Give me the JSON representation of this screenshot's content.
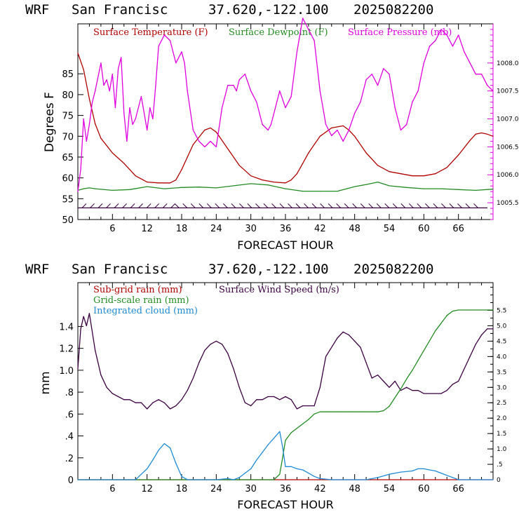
{
  "panel1": {
    "header": {
      "model": "WRF",
      "site": "San Francisc",
      "coords": "37.620,-122.100",
      "date": "2025082200"
    },
    "ylabel": "Degrees F",
    "xlabel": "FORECAST HOUR",
    "y_ticks": [
      "50",
      "55",
      "60",
      "65",
      "70",
      "75",
      "80",
      "85"
    ],
    "x_ticks": [
      "6",
      "12",
      "18",
      "24",
      "30",
      "36",
      "42",
      "48",
      "54",
      "60",
      "66"
    ],
    "right_ticks": [
      "1005.5",
      "1006.0",
      "1006.5",
      "1007.0",
      "1007.5",
      "1008.0"
    ],
    "legend": [
      {
        "label": "Surface Temperature (F)",
        "color": "#b00000"
      },
      {
        "label": "Surface Dewpoint (F)",
        "color": "#228b22"
      },
      {
        "label": "Surface Pressure (mb)",
        "color": "#e000e0"
      }
    ],
    "colors": {
      "temperature": "#b00000",
      "dewpoint": "#228b22",
      "pressure": "#e000e0",
      "wind_barbs": "#3a0040",
      "right_axis": "#e000e0"
    }
  },
  "panel2": {
    "header": {
      "model": "WRF",
      "site": "San Francisc",
      "coords": "37.620,-122.100",
      "date": "2025082200"
    },
    "ylabel": "mm",
    "xlabel": "FORECAST HOUR",
    "y_ticks": [
      "0",
      ".2",
      ".4",
      ".6",
      ".8",
      "1.0",
      "1.2",
      "1.4"
    ],
    "x_ticks": [
      "6",
      "12",
      "18",
      "24",
      "30",
      "36",
      "42",
      "48",
      "54",
      "60",
      "66"
    ],
    "right_ticks": [
      "0",
      ".5",
      "1.0",
      "1.5",
      "2.0",
      "2.5",
      "3.0",
      "3.5",
      "4.0",
      "4.5",
      "5.0",
      "5.5"
    ],
    "legend": [
      {
        "label": "Sub-grid rain (mm)",
        "color": "#b00000"
      },
      {
        "label": "Surface Wind Speed (m/s)",
        "color": "#3a0040"
      },
      {
        "label": "Grid-scale rain (mm)",
        "color": "#228b22"
      },
      {
        "label": "Integrated cloud (mm)",
        "color": "#1e8ad6"
      }
    ],
    "colors": {
      "subgrid": "#b00000",
      "wind": "#3a0040",
      "gridrain": "#228b22",
      "cloud": "#1e8ad6",
      "right_axis": "#000000"
    }
  },
  "chart_data": [
    {
      "type": "line",
      "title": "WRF San Francisc 37.620,-122.100 2025082200",
      "xlabel": "FORECAST HOUR",
      "ylabel": "Degrees F",
      "xlim": [
        0,
        72
      ],
      "ylim": [
        50,
        97
      ],
      "y2lim": [
        1005.2,
        1008.7
      ],
      "grid": false,
      "legend_position": "top",
      "series": [
        {
          "name": "Surface Temperature (F)",
          "axis": "left",
          "x": [
            0,
            1,
            2,
            3,
            4,
            6,
            8,
            10,
            12,
            14,
            16,
            17,
            18,
            19,
            20,
            22,
            23,
            24,
            26,
            28,
            30,
            32,
            34,
            36,
            37,
            38,
            39,
            40,
            42,
            44,
            46,
            47,
            48,
            50,
            52,
            54,
            56,
            58,
            60,
            62,
            64,
            66,
            68,
            69,
            70,
            71,
            72
          ],
          "y": [
            90,
            86,
            79,
            73,
            69.5,
            66,
            63.5,
            60.5,
            59,
            58.8,
            58.8,
            59.5,
            62,
            65,
            68,
            71.5,
            72,
            71,
            67,
            63,
            60.5,
            59.5,
            59,
            58.8,
            59.5,
            61,
            63.5,
            66,
            70,
            72,
            72.5,
            71.5,
            70,
            66,
            63,
            61.5,
            61,
            60.5,
            60.5,
            61,
            62.5,
            65.5,
            69,
            70.5,
            70.8,
            70.5,
            70
          ]
        },
        {
          "name": "Surface Dewpoint (F)",
          "axis": "left",
          "x": [
            0,
            1,
            2,
            3,
            6,
            9,
            12,
            15,
            18,
            21,
            24,
            27,
            30,
            33,
            36,
            39,
            42,
            45,
            48,
            50,
            52,
            54,
            57,
            60,
            63,
            66,
            69,
            72
          ],
          "y": [
            57,
            57.4,
            57.6,
            57.4,
            57,
            57.2,
            57.9,
            57.4,
            57.7,
            57.8,
            57.6,
            58.1,
            58.6,
            58.3,
            57.4,
            56.8,
            56.8,
            56.8,
            57.9,
            58.4,
            59,
            58.1,
            57.7,
            57.4,
            57.4,
            57.2,
            57,
            57.3
          ]
        },
        {
          "name": "Surface Pressure (mb)",
          "axis": "right",
          "x": [
            0,
            0.5,
            1,
            1.5,
            2,
            2.5,
            3,
            4,
            4.5,
            5,
            5.5,
            6,
            6.5,
            7,
            7.5,
            8,
            8.5,
            9,
            9.5,
            10,
            11,
            11.5,
            12,
            12.5,
            13,
            13.5,
            14,
            15,
            16,
            17,
            18,
            18.5,
            19,
            20,
            21,
            22,
            23,
            24,
            25,
            26,
            27,
            27.5,
            28,
            29,
            30,
            31,
            32,
            33,
            33.5,
            34,
            35,
            36,
            37,
            38,
            39,
            40,
            41,
            42,
            43,
            44,
            45,
            46,
            47,
            48,
            49,
            50,
            51,
            52,
            53,
            54,
            55,
            56,
            57,
            58,
            59,
            60,
            61,
            62,
            63,
            64,
            65,
            66,
            67,
            68,
            69,
            70,
            71,
            72
          ],
          "y": [
            1005.7,
            1006.1,
            1007.0,
            1006.6,
            1006.9,
            1007.3,
            1007.5,
            1008.0,
            1007.6,
            1007.7,
            1007.5,
            1007.8,
            1007.2,
            1007.9,
            1008.1,
            1007.1,
            1006.6,
            1007.2,
            1006.9,
            1007.0,
            1007.4,
            1007.1,
            1006.8,
            1007.2,
            1007.0,
            1007.6,
            1008.3,
            1008.5,
            1008.4,
            1008.0,
            1008.2,
            1008.0,
            1007.5,
            1006.8,
            1006.6,
            1006.5,
            1006.6,
            1006.5,
            1007.2,
            1007.6,
            1007.6,
            1007.5,
            1007.7,
            1007.8,
            1007.5,
            1007.3,
            1006.9,
            1006.8,
            1006.9,
            1007.1,
            1007.5,
            1007.2,
            1007.4,
            1008.2,
            1008.8,
            1008.6,
            1008.4,
            1007.5,
            1006.9,
            1006.7,
            1006.8,
            1006.6,
            1006.8,
            1007.1,
            1007.3,
            1007.7,
            1007.8,
            1007.6,
            1007.9,
            1007.8,
            1007.2,
            1006.8,
            1006.9,
            1007.3,
            1007.5,
            1008.0,
            1008.3,
            1008.4,
            1008.6,
            1008.5,
            1008.3,
            1008.5,
            1008.2,
            1008.0,
            1007.8,
            1007.8,
            1007.6,
            1007.5
          ]
        }
      ],
      "wind_barbs": {
        "color": "#3a0040",
        "y_level": 52.8,
        "count": 50
      }
    },
    {
      "type": "line",
      "title": "WRF San Francisc 37.620,-122.100 2025082200",
      "xlabel": "FORECAST HOUR",
      "ylabel": "mm",
      "xlim": [
        0,
        72
      ],
      "ylim": [
        0,
        1.8
      ],
      "y2lim": [
        0,
        6.4
      ],
      "grid": false,
      "legend_position": "top-left",
      "series": [
        {
          "name": "Sub-grid rain (mm)",
          "axis": "left",
          "x": [
            0,
            72
          ],
          "y": [
            0,
            0
          ]
        },
        {
          "name": "Surface Wind Speed (m/s)",
          "axis": "right",
          "x": [
            0,
            0.5,
            1,
            1.5,
            2,
            3,
            4,
            5,
            6,
            7,
            8,
            9,
            10,
            11,
            12,
            13,
            14,
            15,
            16,
            17,
            18,
            19,
            20,
            21,
            22,
            23,
            24,
            25,
            26,
            27,
            28,
            29,
            30,
            31,
            32,
            33,
            34,
            35,
            36,
            37,
            38,
            39,
            40,
            41,
            42,
            43,
            44,
            45,
            46,
            47,
            48,
            49,
            50,
            51,
            52,
            53,
            54,
            55,
            56,
            57,
            58,
            59,
            60,
            61,
            62,
            63,
            64,
            65,
            66,
            67,
            68,
            69,
            70,
            71,
            72
          ],
          "y": [
            3.6,
            4.9,
            5.3,
            5.0,
            5.4,
            4.2,
            3.4,
            3.0,
            2.8,
            2.7,
            2.6,
            2.6,
            2.5,
            2.5,
            2.3,
            2.5,
            2.6,
            2.5,
            2.3,
            2.4,
            2.6,
            2.9,
            3.3,
            3.8,
            4.2,
            4.4,
            4.5,
            4.4,
            4.1,
            3.6,
            3.0,
            2.5,
            2.4,
            2.6,
            2.6,
            2.7,
            2.7,
            2.6,
            2.7,
            2.6,
            2.3,
            2.4,
            2.4,
            2.4,
            3.0,
            4.0,
            4.3,
            4.6,
            4.8,
            4.7,
            4.5,
            4.3,
            3.8,
            3.3,
            3.4,
            3.2,
            3.0,
            3.2,
            2.9,
            3.0,
            2.9,
            2.9,
            2.8,
            2.8,
            2.8,
            2.8,
            2.9,
            3.1,
            3.2,
            3.6,
            4.0,
            4.4,
            4.7,
            4.9,
            4.9
          ]
        },
        {
          "name": "Grid-scale rain (mm)",
          "axis": "left",
          "x": [
            0,
            34,
            35,
            35.5,
            36,
            37,
            38,
            39,
            40,
            41,
            42,
            44,
            46,
            48,
            50,
            52,
            53,
            54,
            55,
            56,
            57,
            58,
            59,
            60,
            61,
            62,
            63,
            64,
            65,
            66,
            68,
            70,
            72
          ],
          "y": [
            0,
            0,
            0.05,
            0.2,
            0.36,
            0.43,
            0.47,
            0.51,
            0.55,
            0.6,
            0.62,
            0.62,
            0.62,
            0.62,
            0.62,
            0.62,
            0.63,
            0.67,
            0.75,
            0.83,
            0.92,
            1.0,
            1.09,
            1.18,
            1.27,
            1.36,
            1.43,
            1.5,
            1.54,
            1.55,
            1.55,
            1.55,
            1.55
          ]
        },
        {
          "name": "Integrated cloud (mm)",
          "axis": "left",
          "x": [
            0,
            10,
            11,
            12,
            13,
            14,
            15,
            16,
            17,
            18,
            19,
            22,
            24,
            26,
            27,
            28,
            29,
            30,
            31,
            32,
            33,
            34,
            35,
            35.5,
            36,
            37,
            38,
            39,
            40,
            41,
            42,
            44,
            46,
            48,
            50,
            52,
            54,
            56,
            58,
            59,
            60,
            61,
            62,
            63,
            64,
            65,
            66,
            68,
            70,
            72
          ],
          "y": [
            0,
            0,
            0.05,
            0.1,
            0.18,
            0.27,
            0.33,
            0.29,
            0.15,
            0.03,
            0,
            0,
            0,
            0.01,
            0,
            0.02,
            0.06,
            0.1,
            0.18,
            0.25,
            0.32,
            0.38,
            0.44,
            0.3,
            0.12,
            0.12,
            0.1,
            0.09,
            0.06,
            0.03,
            0.01,
            0,
            0,
            0,
            0,
            0.02,
            0.05,
            0.07,
            0.08,
            0.1,
            0.1,
            0.09,
            0.08,
            0.06,
            0.04,
            0.02,
            0,
            0,
            0,
            0
          ]
        }
      ]
    }
  ]
}
